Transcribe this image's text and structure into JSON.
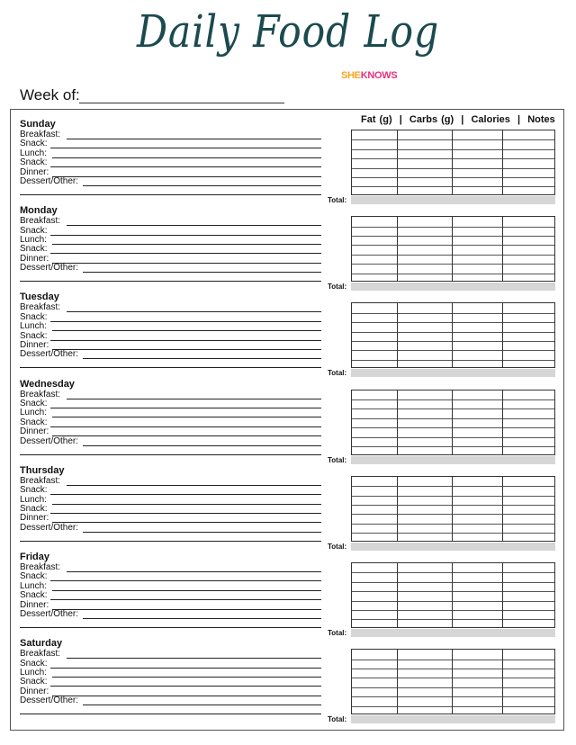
{
  "title": "Daily Food Log",
  "brand": {
    "she": "SHE",
    "knows": "KNOWS"
  },
  "week_label": "Week of:",
  "columns_header": "Fat (g)  |  Carbs (g)  |  Calories  |  Notes",
  "meals": [
    "Breakfast:",
    "Snack:",
    "Lunch:",
    "Snack:",
    "Dinner:",
    "Dessert/Other:"
  ],
  "total_label": "Total:",
  "days": [
    "Sunday",
    "Monday",
    "Tuesday",
    "Wednesday",
    "Thursday",
    "Friday",
    "Saturday"
  ],
  "colors": {
    "title": "#1b4a4f",
    "she": "#f5a623",
    "knows": "#e6317d",
    "total_bar": "#d6d6d6"
  }
}
